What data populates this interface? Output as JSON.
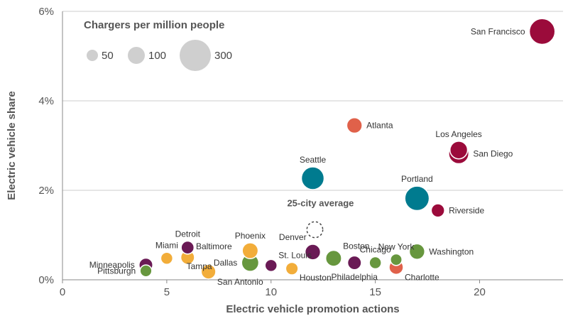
{
  "chart_data": {
    "type": "scatter",
    "xlabel": "Electric vehicle promotion actions",
    "ylabel": "Electric vehicle share",
    "xlim": [
      0,
      24
    ],
    "ylim": [
      0,
      6
    ],
    "xticks": [
      {
        "value": 0,
        "label": "0"
      },
      {
        "value": 5,
        "label": "5"
      },
      {
        "value": 10,
        "label": "10"
      },
      {
        "value": 15,
        "label": "15"
      },
      {
        "value": 20,
        "label": "20"
      }
    ],
    "yticks": [
      {
        "value": 0,
        "label": "0%"
      },
      {
        "value": 2,
        "label": "2%"
      },
      {
        "value": 4,
        "label": "4%"
      },
      {
        "value": 6,
        "label": "6%"
      }
    ],
    "grid": "horizontal",
    "colors": {
      "crimson": "#9b0b3b",
      "coral": "#e0614a",
      "teal": "#007b8f",
      "purple": "#6a1a55",
      "green": "#67973e",
      "orange": "#f2ad3a",
      "legend_gray": "#cfcfcf",
      "grid": "#cccccc",
      "axis": "#888888"
    },
    "size_legend": {
      "title": "Chargers per million people",
      "entries": [
        {
          "value": 50,
          "label": "50"
        },
        {
          "value": 100,
          "label": "100"
        },
        {
          "value": 300,
          "label": "300"
        }
      ]
    },
    "average": {
      "label": "25-city average",
      "x": 12.1,
      "y": 1.12,
      "chargers": 70
    },
    "points": [
      {
        "city": "San Francisco",
        "x": 23,
        "y": 5.55,
        "chargers": 185,
        "color": "crimson",
        "label_pos": "left"
      },
      {
        "city": "Atlanta",
        "x": 14,
        "y": 3.45,
        "chargers": 65,
        "color": "coral",
        "label_pos": "right"
      },
      {
        "city": "Los Angeles",
        "x": 19,
        "y": 2.9,
        "chargers": 90,
        "color": "crimson",
        "label_pos": "above"
      },
      {
        "city": "San Diego",
        "x": 19,
        "y": 2.82,
        "chargers": 120,
        "color": "crimson",
        "label_pos": "right"
      },
      {
        "city": "Seattle",
        "x": 12,
        "y": 2.27,
        "chargers": 150,
        "color": "teal",
        "label_pos": "above"
      },
      {
        "city": "Portland",
        "x": 17,
        "y": 1.82,
        "chargers": 170,
        "color": "teal",
        "label_pos": "above"
      },
      {
        "city": "Riverside",
        "x": 18,
        "y": 1.55,
        "chargers": 40,
        "color": "crimson",
        "label_pos": "right"
      },
      {
        "city": "Detroit",
        "x": 6,
        "y": 0.72,
        "chargers": 35,
        "color": "purple",
        "label_pos": "above"
      },
      {
        "city": "Baltimore",
        "x": 6,
        "y": 0.5,
        "chargers": 45,
        "color": "orange",
        "label_pos": "aboveright"
      },
      {
        "city": "Miami",
        "x": 5,
        "y": 0.48,
        "chargers": 25,
        "color": "orange",
        "label_pos": "above"
      },
      {
        "city": "Tampa",
        "x": 5.5,
        "y": 0.3,
        "chargers": 0,
        "color": "orange",
        "label_pos": "right"
      },
      {
        "city": "Minneapolis",
        "x": 4,
        "y": 0.33,
        "chargers": 45,
        "color": "purple",
        "label_pos": "left"
      },
      {
        "city": "Pittsburgh",
        "x": 4,
        "y": 0.2,
        "chargers": 22,
        "color": "green",
        "label_pos": "left"
      },
      {
        "city": "Phoenix",
        "x": 9,
        "y": 0.65,
        "chargers": 70,
        "color": "orange",
        "label_pos": "above"
      },
      {
        "city": "Dallas",
        "x": 9,
        "y": 0.38,
        "chargers": 85,
        "color": "green",
        "label_pos": "left"
      },
      {
        "city": "St. Louis",
        "x": 10,
        "y": 0.32,
        "chargers": 25,
        "color": "purple",
        "label_pos": "aboveright"
      },
      {
        "city": "San Antonio",
        "x": 7,
        "y": 0.18,
        "chargers": 55,
        "color": "orange",
        "label_pos": "belowright"
      },
      {
        "city": "Houston",
        "x": 11,
        "y": 0.25,
        "chargers": 30,
        "color": "orange",
        "label_pos": "belowright"
      },
      {
        "city": "Denver",
        "x": 12,
        "y": 0.62,
        "chargers": 65,
        "color": "purple",
        "label_pos": "aboveleft"
      },
      {
        "city": "Boston",
        "x": 13,
        "y": 0.48,
        "chargers": 70,
        "color": "green",
        "label_pos": "aboveright"
      },
      {
        "city": "Philadelphia",
        "x": 14,
        "y": 0.38,
        "chargers": 45,
        "color": "purple",
        "label_pos": "below"
      },
      {
        "city": "Chicago",
        "x": 15,
        "y": 0.38,
        "chargers": 25,
        "color": "green",
        "label_pos": "above"
      },
      {
        "city": "New York",
        "x": 16,
        "y": 0.45,
        "chargers": 20,
        "color": "green",
        "label_pos": "above"
      },
      {
        "city": "Charlotte",
        "x": 16,
        "y": 0.28,
        "chargers": 50,
        "color": "coral",
        "label_pos": "belowright"
      },
      {
        "city": "Washington",
        "x": 17,
        "y": 0.63,
        "chargers": 65,
        "color": "green",
        "label_pos": "right"
      }
    ]
  }
}
